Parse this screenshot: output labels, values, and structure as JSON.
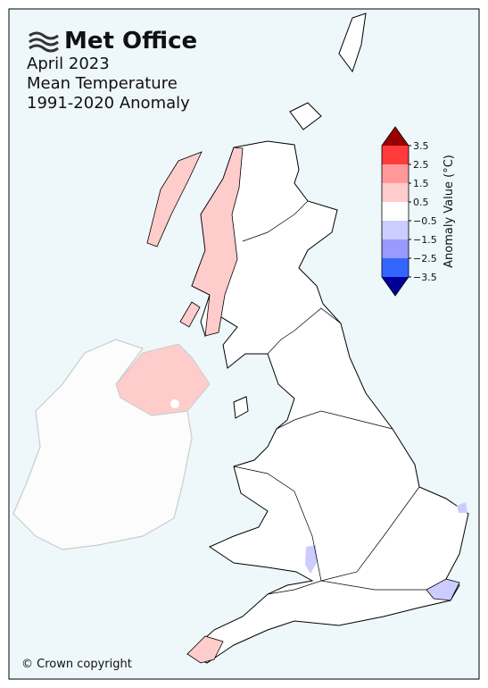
{
  "header": {
    "logo": "Met Office",
    "title_lines": [
      "April 2023",
      "Mean Temperature",
      "1991-2020 Anomaly"
    ]
  },
  "colorbar": {
    "label": "Anomaly Value (°C)",
    "range": [
      -3.5,
      3.5
    ],
    "ticks": [
      {
        "value": -3.5,
        "label": "−3.5"
      },
      {
        "value": -2.5,
        "label": "−2.5"
      },
      {
        "value": -1.5,
        "label": "−1.5"
      },
      {
        "value": -0.5,
        "label": "−0.5"
      },
      0.5,
      1.5,
      2.5,
      3.5
    ],
    "colors": [
      "#3366ff",
      "#9999ff",
      "#ccccff",
      "#ffffff",
      "#ffcccc",
      "#ff9999",
      "#ff3b3b"
    ],
    "extend_colors": {
      "min": "#000099",
      "max": "#990000"
    }
  },
  "footer": {
    "copyright": "© Crown copyright"
  }
}
